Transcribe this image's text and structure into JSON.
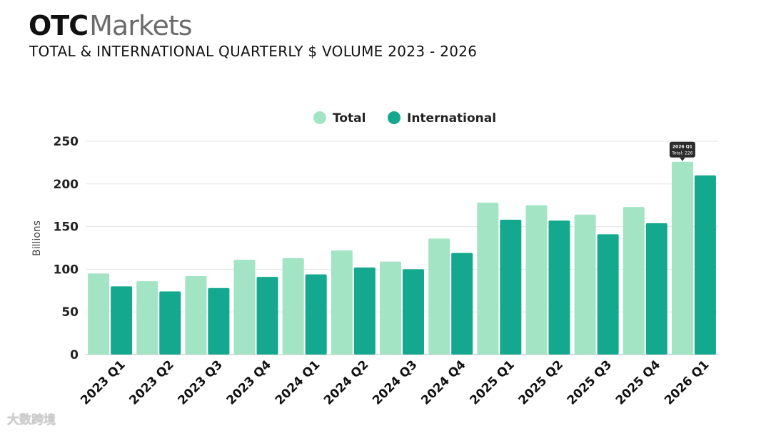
{
  "header": {
    "logo_otc": "OTC",
    "logo_markets": "Markets",
    "subtitle": "TOTAL & INTERNATIONAL QUARTERLY $ VOLUME 2023 - 2026"
  },
  "watermark": "大数跨境",
  "tooltip": {
    "title": "2026 Q1",
    "body": "Total: 226"
  },
  "chart_data": {
    "type": "bar",
    "title": "TOTAL & INTERNATIONAL QUARTERLY $ VOLUME 2023 - 2026",
    "xlabel": "",
    "ylabel": "Billions",
    "ylim": [
      0,
      250
    ],
    "yticks": [
      0,
      50,
      100,
      150,
      200,
      250
    ],
    "grid": true,
    "legend_position": "top-center",
    "categories": [
      "2023 Q1",
      "2023 Q2",
      "2023 Q3",
      "2023 Q4",
      "2024 Q1",
      "2024 Q2",
      "2024 Q3",
      "2024 Q4",
      "2025 Q1",
      "2025 Q2",
      "2025 Q3",
      "2025 Q4",
      "2026 Q1"
    ],
    "series": [
      {
        "name": "Total",
        "color": "#a3e4c4",
        "values": [
          95,
          86,
          92,
          111,
          113,
          122,
          109,
          136,
          178,
          175,
          164,
          173,
          226
        ]
      },
      {
        "name": "International",
        "color": "#14a98e",
        "values": [
          80,
          74,
          78,
          91,
          94,
          102,
          100,
          119,
          158,
          157,
          141,
          154,
          210
        ]
      }
    ]
  }
}
